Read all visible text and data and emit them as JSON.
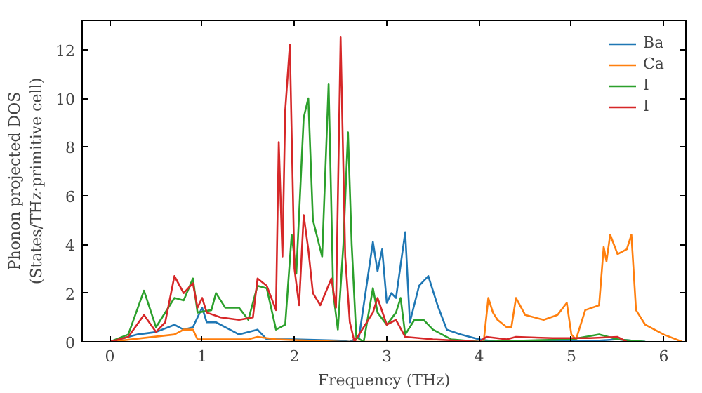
{
  "chart_data": {
    "type": "line",
    "xlabel": "Frequency (THz)",
    "ylabel": "Phonon projected DOS\n(States/THz·primitive cell)",
    "xlim": [
      -0.3,
      6.24
    ],
    "ylim": [
      0,
      13.2
    ],
    "xticks": [
      0,
      1,
      2,
      3,
      4,
      5,
      6
    ],
    "yticks": [
      0,
      2,
      4,
      6,
      8,
      10,
      12
    ],
    "legend": "top right",
    "grid": false,
    "series": [
      {
        "name": "Ba",
        "color": "#1f77b4",
        "x": [
          0,
          0.3,
          0.5,
          0.7,
          0.8,
          0.9,
          1.0,
          1.05,
          1.15,
          1.3,
          1.4,
          1.6,
          1.7,
          2.0,
          2.5,
          2.6,
          2.7,
          2.85,
          2.9,
          2.95,
          3.0,
          3.05,
          3.1,
          3.2,
          3.25,
          3.35,
          3.45,
          3.55,
          3.65,
          3.8,
          4.0,
          4.2,
          5.3,
          5.5,
          5.8
        ],
        "values": [
          0,
          0.3,
          0.4,
          0.7,
          0.5,
          0.6,
          1.4,
          0.8,
          0.8,
          0.5,
          0.3,
          0.5,
          0.1,
          0.1,
          0.05,
          0,
          0.2,
          4.1,
          2.9,
          3.8,
          1.6,
          2.0,
          1.8,
          4.5,
          0.8,
          2.3,
          2.7,
          1.5,
          0.5,
          0.3,
          0.1,
          0,
          0.05,
          0.1,
          0
        ]
      },
      {
        "name": "Ca",
        "color": "#ff7f0e",
        "x": [
          0,
          0.7,
          0.8,
          0.9,
          0.95,
          1.5,
          1.6,
          1.8,
          2.5,
          4.05,
          4.1,
          4.15,
          4.2,
          4.3,
          4.35,
          4.4,
          4.5,
          4.7,
          4.85,
          4.95,
          5.0,
          5.05,
          5.15,
          5.3,
          5.35,
          5.38,
          5.42,
          5.5,
          5.6,
          5.65,
          5.7,
          5.8,
          6.0,
          6.2
        ],
        "values": [
          0,
          0.3,
          0.5,
          0.5,
          0.1,
          0.1,
          0.2,
          0.1,
          0,
          0,
          1.8,
          1.2,
          0.9,
          0.6,
          0.6,
          1.8,
          1.1,
          0.9,
          1.1,
          1.6,
          0.3,
          0.1,
          1.3,
          1.5,
          3.9,
          3.3,
          4.4,
          3.6,
          3.8,
          4.4,
          1.3,
          0.7,
          0.3,
          0
        ]
      },
      {
        "name": "I",
        "color": "#2ca02c",
        "x": [
          0,
          0.2,
          0.37,
          0.5,
          0.7,
          0.8,
          0.9,
          0.95,
          1.1,
          1.15,
          1.25,
          1.4,
          1.5,
          1.6,
          1.7,
          1.8,
          1.9,
          1.97,
          2.02,
          2.1,
          2.15,
          2.2,
          2.3,
          2.37,
          2.42,
          2.47,
          2.53,
          2.58,
          2.62,
          2.67,
          2.75,
          2.85,
          2.9,
          3.0,
          3.1,
          3.15,
          3.2,
          3.3,
          3.4,
          3.5,
          3.7,
          4.0,
          5.0,
          5.3,
          5.5,
          5.8
        ],
        "values": [
          0,
          0.3,
          2.1,
          0.6,
          1.8,
          1.7,
          2.6,
          1.2,
          1.3,
          2.0,
          1.4,
          1.4,
          0.9,
          2.3,
          2.2,
          0.5,
          0.7,
          4.4,
          2.8,
          9.2,
          10.0,
          5.0,
          3.5,
          10.6,
          2.0,
          0.5,
          4.0,
          8.6,
          4.0,
          0.2,
          0,
          2.2,
          1.2,
          0.7,
          1.2,
          1.8,
          0.3,
          0.9,
          0.9,
          0.5,
          0.1,
          0,
          0.1,
          0.3,
          0.1,
          0
        ]
      },
      {
        "name": "I",
        "color": "#d62728",
        "x": [
          0,
          0.2,
          0.37,
          0.5,
          0.6,
          0.7,
          0.8,
          0.9,
          0.95,
          1.0,
          1.05,
          1.2,
          1.4,
          1.55,
          1.6,
          1.7,
          1.8,
          1.83,
          1.87,
          1.9,
          1.95,
          2.0,
          2.05,
          2.1,
          2.15,
          2.2,
          2.28,
          2.4,
          2.45,
          2.5,
          2.55,
          2.6,
          2.65,
          2.85,
          2.9,
          3.0,
          3.1,
          3.2,
          3.5,
          4.0,
          4.08,
          4.3,
          4.4,
          4.8,
          5.2,
          5.5,
          5.6
        ],
        "values": [
          0,
          0.2,
          1.1,
          0.4,
          0.8,
          2.7,
          2.0,
          2.4,
          1.4,
          1.8,
          1.2,
          1.0,
          0.9,
          1.0,
          2.6,
          2.3,
          1.3,
          8.2,
          3.5,
          9.5,
          12.2,
          3.0,
          1.5,
          5.2,
          3.8,
          2.0,
          1.5,
          2.6,
          1.4,
          12.5,
          3.5,
          0.8,
          0,
          1.2,
          1.8,
          0.7,
          0.9,
          0.2,
          0.1,
          0,
          0.2,
          0.1,
          0.2,
          0.15,
          0.15,
          0.2,
          0
        ]
      }
    ]
  }
}
